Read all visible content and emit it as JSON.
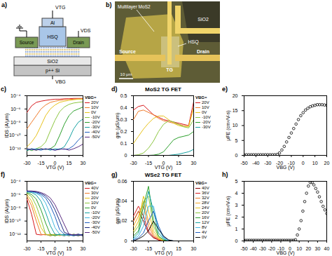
{
  "schematic": {
    "panel": "a)",
    "labels": {
      "top_gate": "VTG",
      "gate_metal": "Al",
      "drain_bias": "VDS",
      "source": "Source",
      "dielectric": "HSQ",
      "drain": "Drain",
      "oxide": "SiO2",
      "substrate": "p++ Si",
      "back_gate": "VBG"
    }
  },
  "micrograph": {
    "panel": "b)",
    "labels": {
      "flake": "Multilayer MoS2",
      "oxide": "SiO2",
      "dielectric": "HSQ",
      "source": "Source",
      "top_gate": "TG",
      "drain": "Drain",
      "scale_bar": "10 μm"
    }
  },
  "chart_data": [
    {
      "panel": "c)",
      "type": "line",
      "x_label": "VTG (V)",
      "y_label": "IDS (A/μm)",
      "log": "y",
      "grid": false,
      "legend": "right",
      "legend_title": "VBG=",
      "xlim": [
        -30,
        30
      ],
      "xticks": [
        -30,
        -15,
        0,
        15,
        30
      ],
      "ylim": [
        1e-13,
        0.0001
      ],
      "yticks": [
        {
          "value": 0.0001,
          "label": "10⁻⁴"
        },
        {
          "value": 1e-06,
          "label": "10⁻⁶"
        },
        {
          "value": 1e-08,
          "label": "10⁻⁸"
        },
        {
          "value": 1e-10,
          "label": "10⁻¹⁰"
        },
        {
          "value": 1e-12,
          "label": "10⁻¹²"
        }
      ],
      "x": [
        -30,
        -25,
        -20,
        -15,
        -10,
        -5,
        0,
        5,
        10,
        15,
        20,
        25,
        30
      ],
      "series": [
        {
          "name": "20V",
          "color": "#d7191c",
          "values": [
            3e-07,
            3e-06,
            1e-05,
            1.5e-05,
            2e-05,
            2.5e-05,
            3e-05,
            3e-05,
            3.5e-05,
            3.5e-05,
            4e-05,
            4e-05,
            4e-05
          ]
        },
        {
          "name": "10V",
          "color": "#f07b2a",
          "values": [
            1e-09,
            1e-08,
            1e-07,
            1e-06,
            4e-06,
            1e-05,
            1.5e-05,
            2e-05,
            2.5e-05,
            3e-05,
            3e-05,
            3.5e-05,
            3.5e-05
          ]
        },
        {
          "name": "0V",
          "color": "#e8c21a",
          "values": [
            2e-12,
            1e-11,
            1e-10,
            3e-09,
            1e-07,
            1e-06,
            4e-06,
            1e-05,
            1.5e-05,
            2e-05,
            2.5e-05,
            3e-05,
            3e-05
          ]
        },
        {
          "name": "-10V",
          "color": "#8cc63f",
          "values": [
            1e-12,
            5e-13,
            1e-12,
            2e-12,
            1e-11,
            5e-10,
            2e-08,
            4e-07,
            2e-06,
            5e-06,
            8e-06,
            1e-05,
            1.2e-05
          ]
        },
        {
          "name": "-20V",
          "color": "#2ca02c",
          "values": [
            5e-13,
            1e-12,
            6e-13,
            1e-12,
            8e-13,
            1e-12,
            3e-12,
            1e-10,
            5e-09,
            1e-07,
            5e-07,
            1e-06,
            2e-06
          ]
        },
        {
          "name": "-30V",
          "color": "#17a2a2",
          "values": [
            1e-12,
            6e-13,
            1e-12,
            8e-13,
            1e-12,
            6e-13,
            1e-12,
            8e-13,
            2e-12,
            3e-11,
            1e-09,
            1e-08,
            3e-08
          ]
        },
        {
          "name": "-40V",
          "color": "#1f5fbf",
          "values": [
            6e-13,
            1e-12,
            8e-13,
            6e-13,
            1e-12,
            8e-13,
            6e-13,
            1e-12,
            8e-13,
            1e-12,
            3e-12,
            2e-11,
            1e-10
          ]
        },
        {
          "name": "-50V",
          "color": "#5a2d82",
          "values": [
            1e-12,
            8e-13,
            6e-13,
            1e-12,
            8e-13,
            1e-12,
            6e-13,
            8e-13,
            1e-12,
            6e-13,
            1e-12,
            2e-12,
            5e-12
          ]
        }
      ]
    },
    {
      "panel": "d)",
      "type": "line",
      "title": "MoS2 TG FET",
      "x_label": "VTG (V)",
      "y_label": "gm (μS/μm)",
      "grid": false,
      "legend": "right",
      "legend_title": "VBG=",
      "xlim": [
        -30,
        30
      ],
      "xticks": [
        -30,
        -15,
        0,
        15,
        30
      ],
      "ylim": [
        0,
        0.5
      ],
      "yticks": [
        0,
        0.1,
        0.2,
        0.3,
        0.4,
        0.5
      ],
      "x": [
        -30,
        -25,
        -20,
        -15,
        -10,
        -5,
        0,
        5,
        10,
        15,
        20,
        25,
        30
      ],
      "series": [
        {
          "name": "20V",
          "color": "#d7191c",
          "values": [
            0.38,
            0.41,
            0.42,
            0.38,
            0.34,
            0.32,
            0.3,
            0.29,
            0.28,
            0.27,
            0.26,
            0.25,
            0.45
          ]
        },
        {
          "name": "10V",
          "color": "#f07b2a",
          "values": [
            0.3,
            0.37,
            0.38,
            0.36,
            0.34,
            0.31,
            0.29,
            0.28,
            0.27,
            0.26,
            0.25,
            0.25,
            0.4
          ]
        },
        {
          "name": "0V",
          "color": "#e8c21a",
          "values": [
            0.1,
            0.16,
            0.22,
            0.27,
            0.31,
            0.33,
            0.33,
            0.3,
            0.27,
            0.25,
            0.24,
            0.24,
            0.4
          ]
        },
        {
          "name": "-10V",
          "color": "#8cc63f",
          "values": [
            0,
            0.005,
            0.02,
            0.06,
            0.12,
            0.2,
            0.26,
            0.29,
            0.28,
            0.26,
            0.24,
            0.23,
            0.3
          ]
        },
        {
          "name": "-20V",
          "color": "#2ca02c",
          "values": [
            0,
            0,
            0,
            0,
            0.002,
            0.01,
            0.03,
            0.08,
            0.13,
            0.15,
            0.16,
            0.17,
            0.2
          ]
        },
        {
          "name": "-30V",
          "color": "#17a2a2",
          "values": [
            0,
            0,
            0,
            0,
            0,
            0,
            0,
            0,
            0.005,
            0.01,
            0.02,
            0.03,
            0.05
          ]
        }
      ]
    },
    {
      "panel": "e)",
      "type": "scatter",
      "x_label": "VBG (V)",
      "y_label": "μFE (cm²/V-s)",
      "grid": false,
      "marker": "circle",
      "color": "#000000",
      "xlim": [
        -50,
        20
      ],
      "xticks": [
        -50,
        -40,
        -30,
        -20,
        -10,
        0,
        10,
        20
      ],
      "ylim": [
        0,
        20
      ],
      "yticks": [
        0,
        5,
        10,
        15,
        20
      ],
      "x": [
        -50,
        -48,
        -46,
        -44,
        -42,
        -40,
        -38,
        -36,
        -34,
        -32,
        -30,
        -28,
        -26,
        -24,
        -22,
        -20,
        -18,
        -16,
        -14,
        -12,
        -10,
        -8,
        -6,
        -4,
        -2,
        0,
        2,
        4,
        6,
        8,
        10,
        12,
        14,
        16,
        18,
        20
      ],
      "values": [
        0.2,
        0.2,
        0.2,
        0.2,
        0.2,
        0.2,
        0.2,
        0.2,
        0.2,
        0.2,
        0.2,
        0.2,
        0.2,
        0.2,
        0.3,
        0.8,
        1.8,
        3,
        4.5,
        6,
        7.5,
        9,
        10.5,
        12,
        13.3,
        14.3,
        15.2,
        15.8,
        16.3,
        16.6,
        16.8,
        17,
        17,
        17,
        16.9,
        16.8
      ]
    },
    {
      "panel": "f)",
      "type": "line",
      "x_label": "VTG (V)",
      "y_label": "IDS (A/μm)",
      "log": "y",
      "grid": false,
      "legend": "right",
      "legend_title": "VBG=",
      "xlim": [
        -30,
        30
      ],
      "xticks": [
        -30,
        -15,
        0,
        15,
        30
      ],
      "ylim": [
        1e-13,
        0.0001
      ],
      "yticks": [
        {
          "value": 0.0001,
          "label": "10⁻⁴"
        },
        {
          "value": 1e-06,
          "label": "10⁻⁶"
        },
        {
          "value": 1e-08,
          "label": "10⁻⁸"
        },
        {
          "value": 1e-10,
          "label": "10⁻¹⁰"
        },
        {
          "value": 1e-12,
          "label": "10⁻¹²"
        }
      ],
      "x": [
        -30,
        -25,
        -20,
        -15,
        -10,
        -5,
        0,
        5,
        10,
        15,
        20,
        25,
        30
      ],
      "series": [
        {
          "name": "40V",
          "color": "#d7191c",
          "values": [
            2e-07,
            1e-09,
            1e-12,
            8e-13,
            1e-12,
            6e-13,
            1e-12,
            8e-13,
            6e-13,
            1e-12,
            8e-13,
            1e-12,
            6e-13
          ]
        },
        {
          "name": "30V",
          "color": "#f07b2a",
          "values": [
            5e-07,
            2e-08,
            1e-10,
            1e-12,
            8e-13,
            1e-12,
            6e-13,
            1e-12,
            8e-13,
            6e-13,
            1e-12,
            8e-13,
            1e-12
          ]
        },
        {
          "name": "20V",
          "color": "#e8c21a",
          "values": [
            1e-06,
            1e-07,
            1e-09,
            1e-11,
            1e-12,
            8e-13,
            1e-12,
            6e-13,
            1e-12,
            8e-13,
            1e-12,
            6e-13,
            8e-13
          ]
        },
        {
          "name": "10V",
          "color": "#8cc63f",
          "values": [
            1.5e-06,
            5e-07,
            2e-08,
            2e-10,
            1e-12,
            6e-13,
            8e-13,
            1e-12,
            6e-13,
            1e-12,
            8e-13,
            1e-12,
            6e-13
          ]
        },
        {
          "name": "0V",
          "color": "#2ca02c",
          "values": [
            2e-06,
            1e-06,
            2e-07,
            5e-09,
            5e-11,
            1e-12,
            6e-13,
            1e-12,
            8e-13,
            1e-12,
            6e-13,
            8e-13,
            1e-12
          ]
        },
        {
          "name": "-10V",
          "color": "#17a2a2",
          "values": [
            2.5e-06,
            2e-06,
            8e-07,
            1e-07,
            2e-09,
            2e-11,
            1e-12,
            8e-13,
            1e-12,
            6e-13,
            1e-12,
            8e-13,
            6e-13
          ]
        },
        {
          "name": "-20V",
          "color": "#3fb6e0",
          "values": [
            3e-06,
            2.5e-06,
            1.5e-06,
            6e-07,
            5e-08,
            1e-09,
            1e-11,
            1e-12,
            6e-13,
            1e-12,
            8e-13,
            1e-12,
            8e-13
          ]
        },
        {
          "name": "-30V",
          "color": "#1f5fbf",
          "values": [
            3e-06,
            3e-06,
            2e-06,
            1e-06,
            3e-07,
            2e-08,
            5e-10,
            5e-12,
            1e-12,
            8e-13,
            6e-13,
            1e-12,
            8e-13
          ]
        },
        {
          "name": "-40V",
          "color": "#1a2a80",
          "values": [
            3.5e-06,
            3e-06,
            2.5e-06,
            1.5e-06,
            6e-07,
            1e-07,
            5e-09,
            1e-10,
            2e-12,
            1e-12,
            8e-13,
            6e-13,
            1e-12
          ]
        },
        {
          "name": "-50V",
          "color": "#5a2d82",
          "values": [
            3.5e-06,
            3.5e-06,
            3e-06,
            2e-06,
            1e-06,
            3e-07,
            3e-08,
            1e-09,
            3e-11,
            1e-12,
            8e-13,
            1e-12,
            6e-13
          ]
        }
      ]
    },
    {
      "panel": "g)",
      "type": "line",
      "title": "WSe2 TG FET",
      "x_label": "VTG (V)",
      "y_label": "gm (μS/μm)",
      "grid": false,
      "legend": "right",
      "legend_title": "VBG=",
      "xlim": [
        -30,
        30
      ],
      "xticks": [
        -30,
        -15,
        0,
        15,
        30
      ],
      "ylim": [
        0,
        0.06
      ],
      "yticks": [
        0,
        0.02,
        0.04,
        0.06
      ],
      "x": [
        -30,
        -25,
        -20,
        -15,
        -10,
        -5,
        0,
        5,
        10,
        15,
        20,
        25,
        30
      ],
      "series": [
        {
          "name": "40V",
          "color": "#8b0000",
          "values": [
            0.02,
            0.03,
            0.02,
            0.008,
            0.003,
            0.001,
            0,
            0,
            0,
            0,
            0,
            0,
            0
          ]
        },
        {
          "name": "36V",
          "color": "#d7191c",
          "values": [
            0.025,
            0.035,
            0.025,
            0.01,
            0.004,
            0.001,
            0,
            0,
            0,
            0,
            0,
            0,
            0
          ]
        },
        {
          "name": "32V",
          "color": "#f07b2a",
          "values": [
            0.02,
            0.03,
            0.035,
            0.015,
            0.005,
            0.002,
            0,
            0,
            0,
            0,
            0,
            0,
            0
          ]
        },
        {
          "name": "28V",
          "color": "#f5a623",
          "values": [
            0.015,
            0.025,
            0.04,
            0.02,
            0.007,
            0.002,
            0,
            0,
            0,
            0,
            0,
            0,
            0
          ]
        },
        {
          "name": "24V",
          "color": "#e8c21a",
          "values": [
            0.01,
            0.02,
            0.045,
            0.03,
            0.01,
            0.003,
            0,
            0,
            0,
            0,
            0,
            0,
            0
          ]
        },
        {
          "name": "20V",
          "color": "#8cc63f",
          "values": [
            0.008,
            0.015,
            0.04,
            0.045,
            0.015,
            0.004,
            0.001,
            0,
            0,
            0,
            0,
            0,
            0
          ]
        },
        {
          "name": "16V",
          "color": "#2ca02c",
          "values": [
            0.005,
            0.01,
            0.035,
            0.055,
            0.02,
            0.005,
            0.001,
            0,
            0,
            0,
            0,
            0,
            0
          ]
        },
        {
          "name": "12V",
          "color": "#17a2a2",
          "values": [
            0.003,
            0.008,
            0.025,
            0.05,
            0.03,
            0.008,
            0.002,
            0,
            0,
            0,
            0,
            0,
            0
          ]
        },
        {
          "name": "8V",
          "color": "#3fb6e0",
          "values": [
            0.002,
            0.005,
            0.015,
            0.035,
            0.035,
            0.012,
            0.003,
            0,
            0,
            0,
            0,
            0,
            0
          ]
        },
        {
          "name": "4V",
          "color": "#1f5fbf",
          "values": [
            0.001,
            0.003,
            0.008,
            0.02,
            0.03,
            0.015,
            0.004,
            0.001,
            0,
            0,
            0,
            0,
            0
          ]
        },
        {
          "name": "0V",
          "color": "#111111",
          "values": [
            0,
            0.002,
            0.005,
            0.01,
            0.02,
            0.012,
            0.005,
            0.001,
            0,
            0,
            0,
            0,
            0
          ]
        }
      ]
    },
    {
      "panel": "h)",
      "type": "scatter",
      "x_label": "VBG (V)",
      "y_label": "μFE (cm²/V-s)",
      "grid": false,
      "marker": "circle",
      "color": "#000000",
      "xlim": [
        -50,
        40
      ],
      "xticks": [
        -50,
        -40,
        -30,
        -20,
        -10,
        0,
        10,
        20,
        30,
        40
      ],
      "ylim": [
        0,
        5
      ],
      "yticks": [
        0,
        1,
        2,
        3,
        4,
        5
      ],
      "x": [
        -50,
        -48,
        -46,
        -44,
        -42,
        -40,
        -38,
        -36,
        -34,
        -32,
        -30,
        -28,
        -26,
        -24,
        -22,
        -20,
        -18,
        -16,
        -14,
        -12,
        -10,
        -8,
        -6,
        -4,
        -2,
        0,
        2,
        4,
        6,
        8,
        10,
        12,
        14,
        16,
        18,
        20,
        22,
        24,
        26,
        28,
        30,
        32,
        34,
        36,
        38,
        40
      ],
      "values": [
        0.05,
        0.05,
        0.05,
        0.05,
        0.05,
        0.05,
        0.05,
        0.05,
        0.05,
        0.05,
        0.05,
        0.05,
        0.05,
        0.05,
        0.05,
        0.05,
        0.05,
        0.05,
        0.05,
        0.05,
        0.05,
        0.05,
        0.05,
        0.05,
        0.05,
        0.05,
        0.05,
        0.05,
        0.1,
        0.5,
        1,
        1.7,
        2.5,
        3.3,
        4,
        4.6,
        4.9,
        4.9,
        4.7,
        4.4,
        4.1,
        3.7,
        3.3,
        2.9,
        2.6,
        2.3
      ]
    }
  ]
}
